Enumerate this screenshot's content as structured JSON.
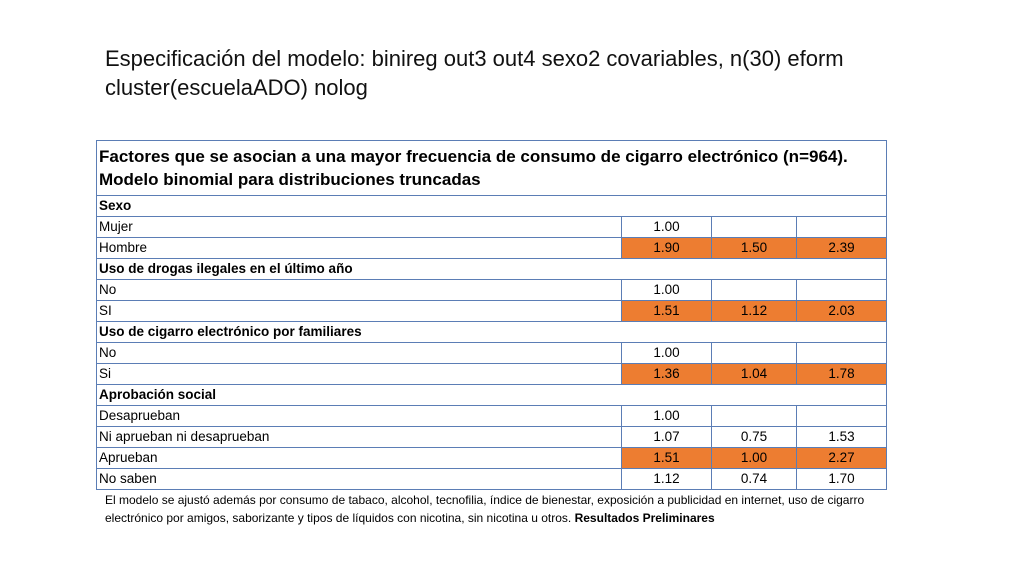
{
  "title": "Especificación del modelo: binireg out3 out4 sexo2 covariables, n(30) eform cluster(escuelaADO) nolog",
  "table": {
    "caption": " Factores que se asocian a una mayor frecuencia de consumo de cigarro electrónico (n=964). Modelo binomial para distribuciones truncadas",
    "sections": [
      {
        "header": "Sexo",
        "rows": [
          {
            "label": "Mujer",
            "or": "1.00",
            "lo": "",
            "hi": "",
            "highlight": false
          },
          {
            "label": "Hombre",
            "or": "1.90",
            "lo": "1.50",
            "hi": "2.39",
            "highlight": true
          }
        ]
      },
      {
        "header": "Uso de drogas ilegales en el último año",
        "rows": [
          {
            "label": "No",
            "or": "1.00",
            "lo": "",
            "hi": "",
            "highlight": false
          },
          {
            "label": "SI",
            "or": "1.51",
            "lo": "1.12",
            "hi": "2.03",
            "highlight": true
          }
        ]
      },
      {
        "header": "Uso de cigarro electrónico por familiares",
        "rows": [
          {
            "label": "No",
            "or": "1.00",
            "lo": "",
            "hi": "",
            "highlight": false
          },
          {
            "label": "Si",
            "or": "1.36",
            "lo": "1.04",
            "hi": "1.78",
            "highlight": true
          }
        ]
      },
      {
        "header": "Aprobación social",
        "rows": [
          {
            "label": "Desaprueban",
            "or": "1.00",
            "lo": "",
            "hi": "",
            "highlight": false
          },
          {
            "label": "Ni aprueban ni desaprueban",
            "or": "1.07",
            "lo": "0.75",
            "hi": "1.53",
            "highlight": false
          },
          {
            "label": "Aprueban",
            "or": "1.51",
            "lo": "1.00",
            "hi": "2.27",
            "highlight": true
          },
          {
            "label": "No saben",
            "or": "1.12",
            "lo": "0.74",
            "hi": "1.70",
            "highlight": false
          }
        ]
      }
    ]
  },
  "note": {
    "text": "El modelo se ajustó además  por consumo de tabaco, alcohol, tecnofilia, índice de bienestar, exposición a publicidad en internet, uso de cigarro electrónico por amigos, saborizante y tipos de líquidos con nicotina, sin nicotina u otros.  ",
    "bold": "Resultados Preliminares"
  },
  "colors": {
    "highlight": "#ed7d31",
    "border": "#5b7db5"
  }
}
